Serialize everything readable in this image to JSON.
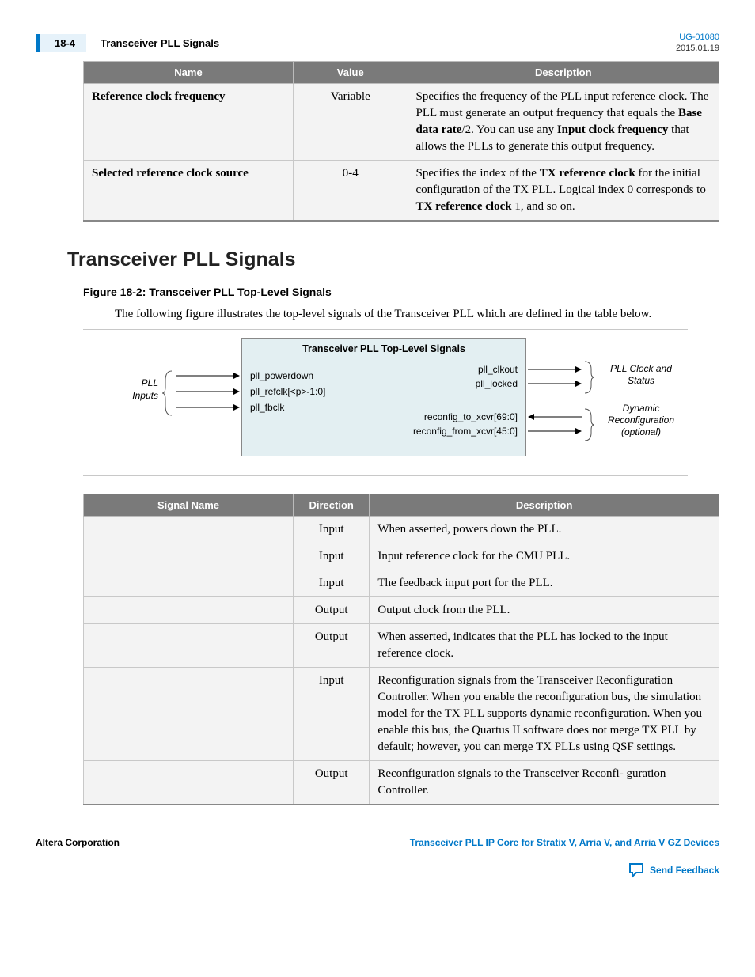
{
  "header": {
    "pageNum": "18-4",
    "title": "Transceiver PLL Signals",
    "doc": "UG-01080",
    "date": "2015.01.19"
  },
  "table1": {
    "headers": [
      "Name",
      "Value",
      "Description"
    ],
    "rows": [
      {
        "name": "Reference clock frequency",
        "value": "Variable",
        "desc_parts": [
          {
            "t": "Specifies the frequency of the PLL input reference clock. The PLL must generate an output frequency that equals the "
          },
          {
            "t": "Base data rate",
            "b": true
          },
          {
            "t": "/2. You can use any "
          },
          {
            "t": "Input clock frequency",
            "b": true
          },
          {
            "t": " that allows the PLLs to generate this output frequency."
          }
        ]
      },
      {
        "name": "Selected reference clock source",
        "value": "0-4",
        "desc_parts": [
          {
            "t": "Specifies the index of the "
          },
          {
            "t": "TX reference clock",
            "b": true
          },
          {
            "t": " for the initial configuration of the TX PLL. Logical index 0 corresponds to "
          },
          {
            "t": "TX reference clock",
            "b": true
          },
          {
            "t": " 1, and so on."
          }
        ]
      }
    ]
  },
  "section": {
    "heading": "Transceiver PLL Signals",
    "figTitle": "Figure 18-2: Transceiver PLL Top-Level Signals",
    "figText": "The following figure illustrates the top-level signals of the Transceiver PLL which are defined in the table below."
  },
  "diagram": {
    "boxTitle": "Transceiver PLL Top-Level Signals",
    "leftLabel": "PLL Inputs",
    "leftSignals": [
      "pll_powerdown",
      "pll_refclk[<p>-1:0]",
      "pll_fbclk"
    ],
    "rightTop": [
      "pll_clkout",
      "pll_locked"
    ],
    "rightBottom": [
      "reconfig_to_xcvr[69:0]",
      "reconfig_from_xcvr[45:0]"
    ],
    "rightLabel1": "PLL Clock and Status",
    "rightLabel2": "Dynamic Reconfiguration (optional)"
  },
  "table2": {
    "headers": [
      "Signal Name",
      "Direction",
      "Description"
    ],
    "rows": [
      {
        "name": "",
        "dir": "Input",
        "desc": "When asserted, powers down the PLL."
      },
      {
        "name": "",
        "dir": "Input",
        "desc": "Input reference clock for the CMU PLL."
      },
      {
        "name": "",
        "dir": "Input",
        "desc": "The feedback input port for the PLL."
      },
      {
        "name": "",
        "dir": "Output",
        "desc": "Output clock from the PLL."
      },
      {
        "name": "",
        "dir": "Output",
        "desc": "When asserted, indicates that the PLL has locked to the input reference clock."
      },
      {
        "name": "",
        "dir": "Input",
        "desc": "Reconfiguration signals from the Transceiver Reconfiguration Controller. When you enable the reconfiguration bus, the simulation model for the TX PLL supports dynamic reconfiguration. When you enable this bus, the Quartus II software does not merge TX PLL by default; however, you can merge TX PLLs using QSF settings."
      },
      {
        "name": "",
        "dir": "Output",
        "desc": "Reconfiguration signals to the Transceiver Reconfi‐ guration Controller."
      }
    ]
  },
  "footer": {
    "corp": "Altera Corporation",
    "doclink": "Transceiver PLL IP Core for Stratix V, Arria V, and Arria V GZ Devices",
    "feedback": "Send Feedback"
  }
}
